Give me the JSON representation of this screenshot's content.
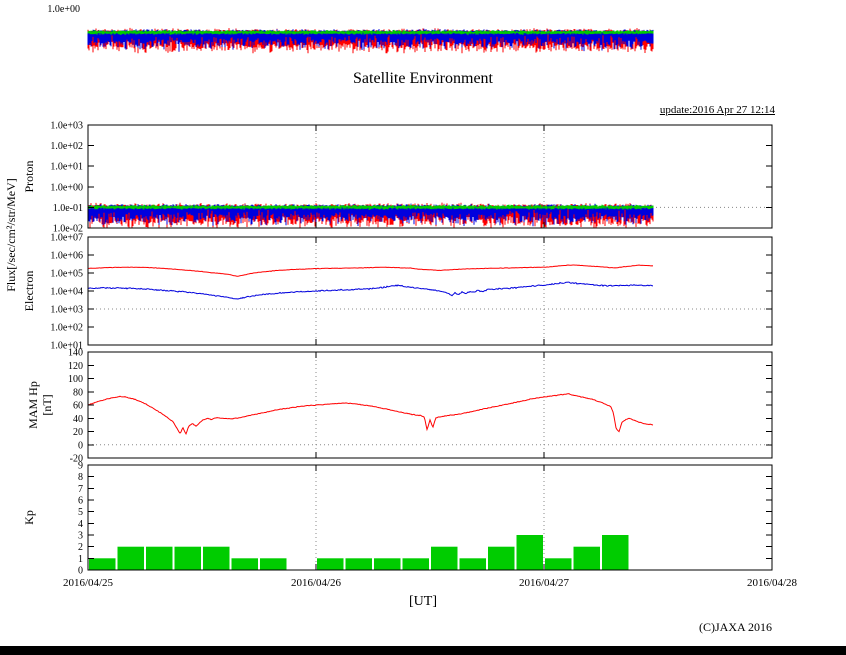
{
  "title": "Satellite Environment",
  "update_text": "update:2016 Apr 27 12:14",
  "copyright": "(C)JAXA 2016",
  "flux_axis_label": "Flux[/sec/cm²/str/MeV]",
  "xaxis": {
    "title": "[UT]",
    "tick_labels": [
      "2016/04/25",
      "2016/04/26",
      "2016/04/27",
      "2016/04/28"
    ],
    "range_hours": [
      0,
      72
    ],
    "day_grid_hours": [
      24,
      48
    ]
  },
  "top_strip": {
    "tick_label": "1.0e+00",
    "t_range": [
      0,
      59.5
    ]
  },
  "colors": {
    "red": "#ff0000",
    "blue": "#0000dd",
    "green": "#00cc00",
    "grid": "#888888"
  },
  "chart_data": [
    {
      "name": "proton-flux",
      "type": "line",
      "ylabel": "Proton",
      "yscale": "log",
      "ylim": [
        0.01,
        1000
      ],
      "yticks": [
        1000,
        100,
        10,
        1,
        0.1,
        0.01
      ],
      "ytick_labels": [
        "1.0e+03",
        "1.0e+02",
        "1.0e+01",
        "1.0e+00",
        "1.0e-01",
        "1.0e-02"
      ],
      "grid_y": [
        0.1
      ],
      "series": [
        {
          "name": "proton-channel-red",
          "color": "red",
          "style": "noise",
          "t_range": [
            0,
            59.5
          ],
          "log_hi": [
            -0.92,
            0.18
          ],
          "log_lo": [
            -1.7,
            0.45
          ]
        },
        {
          "name": "proton-channel-blue",
          "color": "blue",
          "style": "noise",
          "t_range": [
            0,
            59.5
          ],
          "log_hi": [
            -0.92,
            0.12
          ],
          "log_lo": [
            -1.5,
            0.5
          ]
        },
        {
          "name": "proton-channel-green",
          "color": "green",
          "style": "noise",
          "t_range": [
            0,
            59.5
          ],
          "log_hi": [
            -0.92,
            0.07
          ],
          "log_lo": [
            -1.06,
            0.07
          ]
        }
      ]
    },
    {
      "name": "electron-flux",
      "type": "line",
      "ylabel": "Electron",
      "yscale": "log",
      "ylim": [
        10,
        10000000
      ],
      "yticks": [
        10000000,
        1000000,
        100000,
        10000,
        1000,
        100,
        10
      ],
      "ytick_labels": [
        "1.0e+07",
        "1.0e+06",
        "1.0e+05",
        "1.0e+04",
        "1.0e+03",
        "1.0e+02",
        "1.0e+01"
      ],
      "grid_y": [
        1000
      ],
      "series": [
        {
          "name": "electron-high-energy",
          "color": "red",
          "style": "line",
          "jitter": 0.02,
          "points": [
            [
              0,
              180000.0
            ],
            [
              2,
              200000.0
            ],
            [
              4,
              210000.0
            ],
            [
              6,
              205000.0
            ],
            [
              8,
              180000.0
            ],
            [
              10,
              150000.0
            ],
            [
              12,
              120000.0
            ],
            [
              13,
              105000.0
            ],
            [
              14,
              95000.0
            ],
            [
              15,
              80000.0
            ],
            [
              15.7,
              65000.0
            ],
            [
              16.3,
              75000.0
            ],
            [
              17,
              90000.0
            ],
            [
              18,
              110000.0
            ],
            [
              20,
              140000.0
            ],
            [
              22,
              160000.0
            ],
            [
              24,
              175000.0
            ],
            [
              26,
              185000.0
            ],
            [
              28,
              190000.0
            ],
            [
              30,
              200000.0
            ],
            [
              31,
              210000.0
            ],
            [
              32,
              205000.0
            ],
            [
              33,
              195000.0
            ],
            [
              34,
              185000.0
            ],
            [
              35,
              160000.0
            ],
            [
              36,
              150000.0
            ],
            [
              37,
              140000.0
            ],
            [
              38,
              150000.0
            ],
            [
              39,
              160000.0
            ],
            [
              40,
              170000.0
            ],
            [
              41,
              175000.0
            ],
            [
              42,
              180000.0
            ],
            [
              43,
              185000.0
            ],
            [
              44,
              190000.0
            ],
            [
              45,
              195000.0
            ],
            [
              46,
              200000.0
            ],
            [
              47,
              205000.0
            ],
            [
              48,
              210000.0
            ],
            [
              49,
              230000.0
            ],
            [
              50,
              260000.0
            ],
            [
              51,
              280000.0
            ],
            [
              52,
              260000.0
            ],
            [
              53,
              240000.0
            ],
            [
              54,
              220000.0
            ],
            [
              55,
              200000.0
            ],
            [
              55.5,
              190000.0
            ],
            [
              56,
              210000.0
            ],
            [
              57,
              240000.0
            ],
            [
              58,
              270000.0
            ],
            [
              59,
              260000.0
            ],
            [
              59.5,
              250000.0
            ]
          ]
        },
        {
          "name": "electron-low-energy",
          "color": "blue",
          "style": "line",
          "jitter": 0.05,
          "points": [
            [
              0,
              14000.0
            ],
            [
              2,
              15000.0
            ],
            [
              4,
              14500.0
            ],
            [
              6,
              13000.0
            ],
            [
              8,
              11000.0
            ],
            [
              10,
              9000.0
            ],
            [
              12,
              7000.0
            ],
            [
              13,
              6000.0
            ],
            [
              14,
              5000.0
            ],
            [
              15,
              4200.0
            ],
            [
              15.7,
              3600.0
            ],
            [
              16.3,
              4200.0
            ],
            [
              17,
              5000.0
            ],
            [
              18,
              6000.0
            ],
            [
              20,
              7500.0
            ],
            [
              22,
              9000.0
            ],
            [
              24,
              10000.0
            ],
            [
              26,
              11000.0
            ],
            [
              28,
              12000.0
            ],
            [
              30,
              14000.0
            ],
            [
              31,
              16000.0
            ],
            [
              32,
              19000.0
            ],
            [
              32.5,
              21000.0
            ],
            [
              33,
              19000.0
            ],
            [
              34,
              16000.0
            ],
            [
              35,
              14000.0
            ],
            [
              36,
              12000.0
            ],
            [
              37,
              10000.0
            ],
            [
              37.5,
              8500.0
            ],
            [
              38,
              7000.0
            ],
            [
              38.3,
              5500.0
            ],
            [
              38.6,
              8000.0
            ],
            [
              39,
              6500.0
            ],
            [
              39.4,
              9000.0
            ],
            [
              39.8,
              7000.0
            ],
            [
              40.2,
              10000.0
            ],
            [
              40.6,
              8000.0
            ],
            [
              41,
              11000.0
            ],
            [
              41.5,
              9000.0
            ],
            [
              42,
              12000.0
            ],
            [
              43,
              13000.0
            ],
            [
              44,
              14000.0
            ],
            [
              45,
              15000.0
            ],
            [
              46,
              17000.0
            ],
            [
              47,
              19000.0
            ],
            [
              48,
              21000.0
            ],
            [
              49,
              24000.0
            ],
            [
              50,
              28000.0
            ],
            [
              50.5,
              30000.0
            ],
            [
              51,
              28000.0
            ],
            [
              52,
              25000.0
            ],
            [
              53,
              23000.0
            ],
            [
              54,
              21000.0
            ],
            [
              55,
              20000.0
            ],
            [
              56,
              20000.0
            ],
            [
              57,
              21000.0
            ],
            [
              58,
              21000.0
            ],
            [
              59,
              20000.0
            ],
            [
              59.5,
              20000.0
            ]
          ]
        }
      ]
    },
    {
      "name": "mam-hp",
      "type": "line",
      "ylabel": "MAM Hp",
      "ylabel2": "[nT]",
      "yscale": "linear",
      "ylim": [
        -20,
        140
      ],
      "yticks": [
        140,
        120,
        100,
        80,
        60,
        40,
        20,
        0,
        -20
      ],
      "ytick_labels": [
        "140",
        "120",
        "100",
        "80",
        "60",
        "40",
        "20",
        "0",
        "-20"
      ],
      "grid_y": [
        0
      ],
      "series": [
        {
          "name": "hp-magnetic-field",
          "color": "red",
          "style": "line",
          "jitter": 0.8,
          "points": [
            [
              0,
              60
            ],
            [
              1,
              65
            ],
            [
              2,
              69
            ],
            [
              3,
              72
            ],
            [
              3.5,
              73
            ],
            [
              4,
              72
            ],
            [
              5,
              68
            ],
            [
              6,
              62
            ],
            [
              7,
              54
            ],
            [
              8,
              45
            ],
            [
              9,
              34
            ],
            [
              9.4,
              24
            ],
            [
              9.7,
              17
            ],
            [
              10,
              26
            ],
            [
              10.3,
              16
            ],
            [
              10.6,
              28
            ],
            [
              11,
              32
            ],
            [
              11.4,
              28
            ],
            [
              11.8,
              34
            ],
            [
              12.2,
              38
            ],
            [
              12.6,
              40
            ],
            [
              13,
              38
            ],
            [
              13.4,
              41
            ],
            [
              14,
              40
            ],
            [
              15,
              39
            ],
            [
              16,
              41
            ],
            [
              17,
              44
            ],
            [
              18,
              47
            ],
            [
              19,
              50
            ],
            [
              20,
              53
            ],
            [
              21,
              55
            ],
            [
              22,
              57
            ],
            [
              23,
              59
            ],
            [
              24,
              60
            ],
            [
              25,
              61
            ],
            [
              26,
              62
            ],
            [
              27,
              63
            ],
            [
              28,
              62
            ],
            [
              29,
              60
            ],
            [
              30,
              58
            ],
            [
              31,
              55
            ],
            [
              32,
              52
            ],
            [
              33,
              49
            ],
            [
              34,
              46
            ],
            [
              35,
              44
            ],
            [
              35.4,
              42
            ],
            [
              35.7,
              22
            ],
            [
              36,
              38
            ],
            [
              36.3,
              26
            ],
            [
              36.6,
              40
            ],
            [
              37,
              42
            ],
            [
              38,
              44
            ],
            [
              39,
              46
            ],
            [
              40,
              49
            ],
            [
              41,
              52
            ],
            [
              42,
              55
            ],
            [
              43,
              58
            ],
            [
              44,
              61
            ],
            [
              45,
              64
            ],
            [
              46,
              67
            ],
            [
              47,
              70
            ],
            [
              48,
              72
            ],
            [
              49,
              74
            ],
            [
              50,
              76
            ],
            [
              50.5,
              77
            ],
            [
              51,
              75
            ],
            [
              52,
              72
            ],
            [
              53,
              69
            ],
            [
              54,
              64
            ],
            [
              55,
              58
            ],
            [
              55.3,
              48
            ],
            [
              55.6,
              24
            ],
            [
              55.9,
              20
            ],
            [
              56.2,
              34
            ],
            [
              56.6,
              38
            ],
            [
              57,
              40
            ],
            [
              57.5,
              37
            ],
            [
              58,
              34
            ],
            [
              58.5,
              32
            ],
            [
              59,
              31
            ],
            [
              59.5,
              30
            ]
          ]
        }
      ]
    },
    {
      "name": "kp-index",
      "type": "bar",
      "ylabel": "Kp",
      "yscale": "linear",
      "ylim": [
        0,
        9
      ],
      "yticks": [
        9,
        8,
        7,
        6,
        5,
        4,
        3,
        2,
        1,
        0
      ],
      "ytick_labels": [
        "9",
        "8",
        "7",
        "6",
        "5",
        "4",
        "3",
        "2",
        "1",
        "0"
      ],
      "grid_y": [],
      "series": [
        {
          "name": "kp-bars",
          "color": "green",
          "style": "bars",
          "bin_hours": 3,
          "start_hour": 0,
          "values": [
            1,
            2,
            2,
            2,
            2,
            1,
            1,
            0,
            1,
            1,
            1,
            1,
            2,
            1,
            2,
            3,
            1,
            2,
            3
          ]
        }
      ]
    }
  ]
}
